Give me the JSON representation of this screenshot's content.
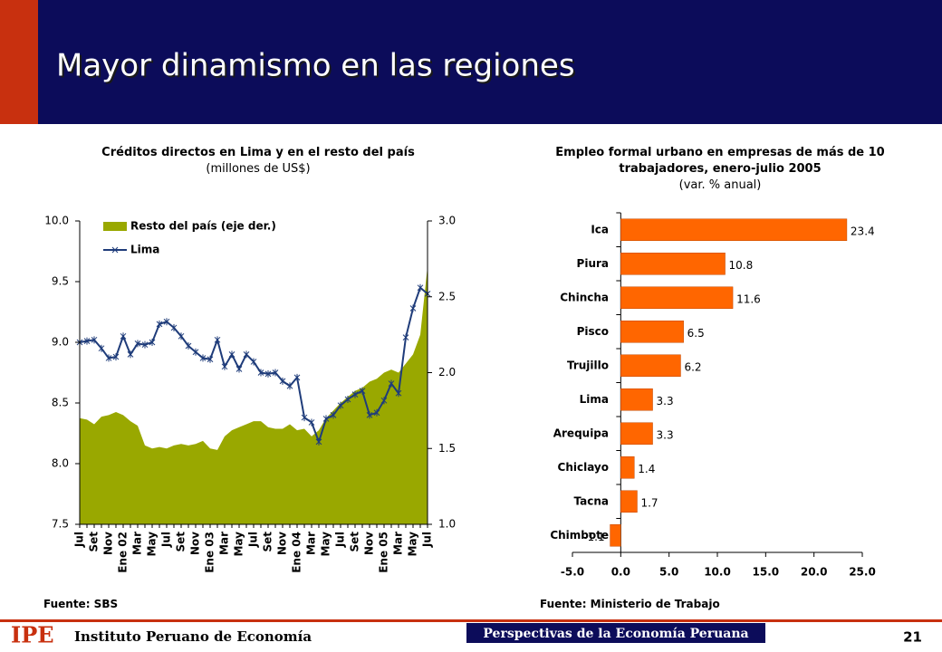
{
  "header": {
    "title": "Mayor dinamismo en las regiones"
  },
  "footer": {
    "logo": "IPE",
    "institute": "Instituto Peruano de Economía",
    "publication": "Perspectivas de la Economía Peruana",
    "page": "21"
  },
  "chart_data": [
    {
      "type": "line",
      "title": "Créditos directos en Lima y en el resto del país",
      "subtitle": "(millones de US$)",
      "source": "Fuente: SBS",
      "categories": [
        "Jul",
        null,
        "Set",
        null,
        "Nov",
        null,
        "Ene 02",
        null,
        "Mar",
        null,
        "May",
        null,
        "Jul",
        null,
        "Set",
        null,
        "Nov",
        null,
        "Ene 03",
        null,
        "Mar",
        null,
        "May",
        null,
        "Jul",
        null,
        "Set",
        null,
        "Nov",
        null,
        "Ene 04",
        null,
        "Mar",
        null,
        "May",
        null,
        "Jul",
        null,
        "Set",
        null,
        "Nov",
        null,
        "Ene 05",
        null,
        "Mar",
        null,
        "May",
        null,
        "Jul"
      ],
      "series": [
        {
          "name": "Resto del país (eje der.)",
          "type": "area",
          "axis": "y2",
          "color": "#99a800",
          "values": [
            1.7,
            1.69,
            1.66,
            1.71,
            1.72,
            1.74,
            1.72,
            1.68,
            1.65,
            1.52,
            1.5,
            1.51,
            1.5,
            1.52,
            1.53,
            1.52,
            1.53,
            1.55,
            1.5,
            1.49,
            1.58,
            1.62,
            1.64,
            1.66,
            1.68,
            1.68,
            1.64,
            1.63,
            1.63,
            1.66,
            1.62,
            1.63,
            1.58,
            1.62,
            1.7,
            1.75,
            1.8,
            1.84,
            1.88,
            1.9,
            1.94,
            1.96,
            2.0,
            2.02,
            2.0,
            2.06,
            2.12,
            2.25,
            2.7
          ]
        },
        {
          "name": "Lima",
          "type": "line",
          "color": "#1f3c7a",
          "values": [
            9.0,
            9.01,
            9.02,
            8.95,
            8.87,
            8.88,
            9.05,
            8.9,
            8.99,
            8.98,
            9.0,
            9.15,
            9.17,
            9.12,
            9.05,
            8.97,
            8.92,
            8.87,
            8.86,
            9.02,
            8.8,
            8.9,
            8.78,
            8.9,
            8.84,
            8.75,
            8.74,
            8.75,
            8.68,
            8.64,
            8.71,
            8.38,
            8.34,
            8.18,
            8.37,
            8.4,
            8.48,
            8.53,
            8.57,
            8.6,
            8.4,
            8.42,
            8.52,
            8.66,
            8.58,
            9.04,
            9.28,
            9.45,
            9.4
          ]
        }
      ],
      "ylim": [
        7.5,
        10.0
      ],
      "yticks": [
        {
          "value": 10.0,
          "label": "10.0"
        },
        9.5,
        {
          "value": 9.0,
          "label": "9.0"
        },
        8.5,
        {
          "value": 8.0,
          "label": "8.0"
        },
        7.5
      ],
      "y2lim": [
        1.0,
        3.0
      ],
      "y2ticks": [
        {
          "value": 3.0,
          "label": "3.0"
        },
        2.5,
        {
          "value": 2.0,
          "label": "2.0"
        },
        1.5,
        {
          "value": 1.0,
          "label": "1.0"
        }
      ],
      "legend": "top-left"
    },
    {
      "type": "barh",
      "title": "Empleo formal urbano en empresas de más de 10 trabajadores, enero-julio 2005",
      "subtitle": "(var. % anual)",
      "source": "Fuente: Ministerio de Trabajo",
      "categories": [
        "Ica",
        "Piura",
        "Chincha",
        "Pisco",
        "Trujillo",
        "Lima",
        "Arequipa",
        "Chiclayo",
        "Tacna",
        "Chimbote"
      ],
      "values": [
        23.4,
        10.8,
        11.6,
        6.5,
        6.2,
        3.3,
        3.3,
        1.4,
        1.7,
        -1.1
      ],
      "color": "#ff6600",
      "xlim": [
        -5.0,
        25.0
      ],
      "xticks": [
        {
          "value": -5.0,
          "label": "-5.0"
        },
        {
          "value": 0.0,
          "label": "0.0"
        },
        {
          "value": 5.0,
          "label": "5.0"
        },
        {
          "value": 10.0,
          "label": "10.0"
        },
        {
          "value": 15.0,
          "label": "15.0"
        },
        {
          "value": 20.0,
          "label": "20.0"
        },
        {
          "value": 25.0,
          "label": "25.0"
        }
      ]
    }
  ]
}
